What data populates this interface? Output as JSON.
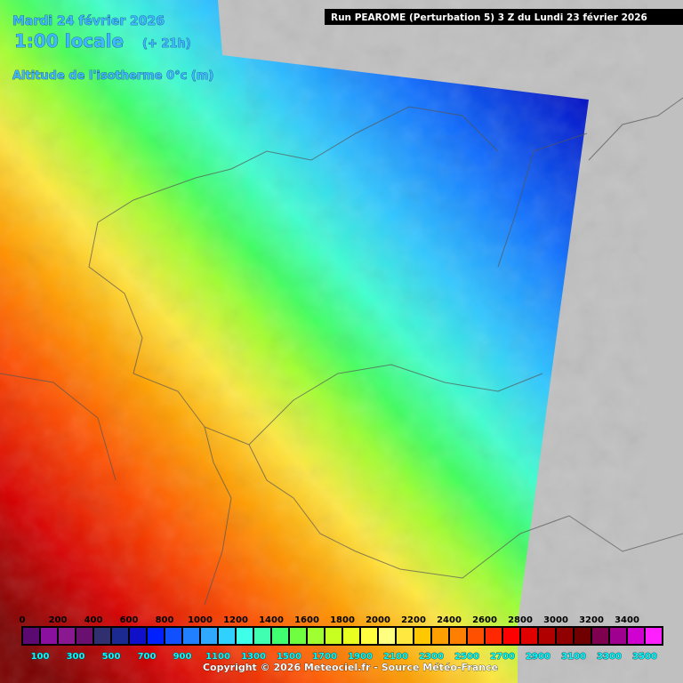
{
  "header": {
    "date": "Mardi 24 février 2026",
    "time": "1:00 locale",
    "lead": "(+ 21h)",
    "run": "Run PEAROME (Perturbation 5) 3 Z du Lundi 23 février 2026",
    "parameter": "Altitude de l'isotherme 0°c (m)"
  },
  "legend": {
    "labels_top": [
      0,
      200,
      400,
      600,
      800,
      1000,
      1200,
      1400,
      1600,
      1800,
      2000,
      2200,
      2400,
      2600,
      2800,
      3000,
      3200,
      3400
    ],
    "labels_bottom": [
      100,
      300,
      500,
      700,
      900,
      1100,
      1300,
      1500,
      1700,
      1900,
      2100,
      2300,
      2500,
      2700,
      2900,
      3100,
      3300,
      3500
    ]
  },
  "footer": {
    "copyright": "Copyright © 2026 Meteociel.fr - Source Météo-France"
  }
}
